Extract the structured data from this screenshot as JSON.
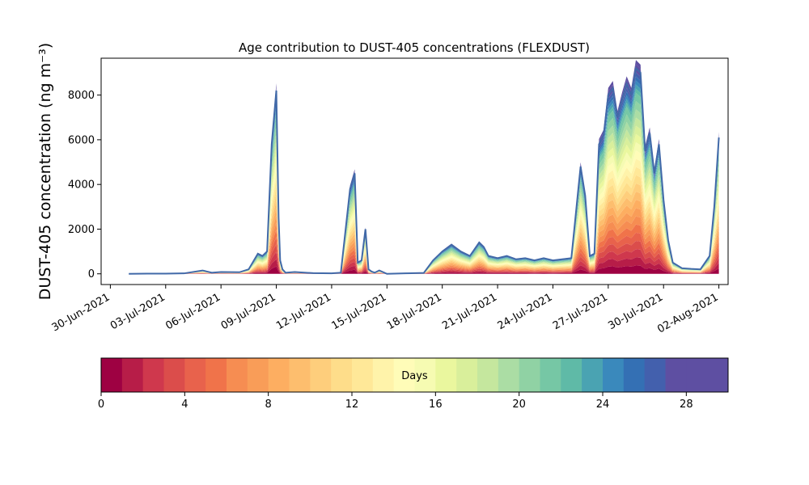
{
  "chart_data": [
    {
      "type": "area",
      "subtype": "stacked",
      "title": "Age contribution to DUST-405 concentrations (FLEXDUST)",
      "ylabel": "DUST-405 concentration (ng m⁻³)",
      "xlabel": "",
      "x_ticks": [
        "30-Jun-2021",
        "03-Jul-2021",
        "06-Jul-2021",
        "09-Jul-2021",
        "12-Jul-2021",
        "15-Jul-2021",
        "18-Jul-2021",
        "21-Jul-2021",
        "24-Jul-2021",
        "27-Jul-2021",
        "30-Jul-2021",
        "02-Aug-2021"
      ],
      "y_ticks": [
        "0",
        "2000",
        "4000",
        "6000",
        "8000"
      ],
      "xlim": [
        "2021-06-29T12:00",
        "2021-08-02T12:00"
      ],
      "ylim": [
        -480,
        9650
      ],
      "grid": false,
      "x": [
        "2021-07-01T00:00",
        "2021-07-02T00:00",
        "2021-07-03T00:00",
        "2021-07-04T00:00",
        "2021-07-05T00:00",
        "2021-07-05T12:00",
        "2021-07-06T00:00",
        "2021-07-07T00:00",
        "2021-07-07T12:00",
        "2021-07-08T00:00",
        "2021-07-08T06:00",
        "2021-07-08T12:00",
        "2021-07-08T18:00",
        "2021-07-09T00:00",
        "2021-07-09T03:00",
        "2021-07-09T05:00",
        "2021-07-09T08:00",
        "2021-07-09T12:00",
        "2021-07-10T00:00",
        "2021-07-11T00:00",
        "2021-07-12T00:00",
        "2021-07-12T12:00",
        "2021-07-13T00:00",
        "2021-07-13T06:00",
        "2021-07-13T10:00",
        "2021-07-13T15:00",
        "2021-07-13T20:00",
        "2021-07-14T00:00",
        "2021-07-14T04:00",
        "2021-07-14T08:00",
        "2021-07-14T14:00",
        "2021-07-15T00:00",
        "2021-07-16T00:00",
        "2021-07-17T00:00",
        "2021-07-17T12:00",
        "2021-07-18T00:00",
        "2021-07-18T12:00",
        "2021-07-19T00:00",
        "2021-07-19T12:00",
        "2021-07-20T00:00",
        "2021-07-20T06:00",
        "2021-07-20T12:00",
        "2021-07-21T00:00",
        "2021-07-21T12:00",
        "2021-07-22T00:00",
        "2021-07-22T12:00",
        "2021-07-23T00:00",
        "2021-07-23T12:00",
        "2021-07-24T00:00",
        "2021-07-24T12:00",
        "2021-07-25T00:00",
        "2021-07-25T12:00",
        "2021-07-25T18:00",
        "2021-07-26T00:00",
        "2021-07-26T06:00",
        "2021-07-26T12:00",
        "2021-07-26T18:00",
        "2021-07-27T00:00",
        "2021-07-27T06:00",
        "2021-07-27T12:00",
        "2021-07-27T18:00",
        "2021-07-28T00:00",
        "2021-07-28T06:00",
        "2021-07-28T12:00",
        "2021-07-28T18:00",
        "2021-07-29T00:00",
        "2021-07-29T06:00",
        "2021-07-29T12:00",
        "2021-07-29T18:00",
        "2021-07-30T00:00",
        "2021-07-30T06:00",
        "2021-07-30T12:00",
        "2021-07-31T00:00",
        "2021-07-31T12:00",
        "2021-08-01T00:00",
        "2021-08-01T12:00",
        "2021-08-01T18:00",
        "2021-08-02T00:00"
      ],
      "total": [
        0,
        10,
        10,
        20,
        150,
        50,
        80,
        70,
        200,
        900,
        800,
        1000,
        5800,
        8200,
        2500,
        600,
        200,
        50,
        80,
        30,
        20,
        50,
        3800,
        4500,
        500,
        600,
        2000,
        200,
        100,
        50,
        150,
        0,
        20,
        40,
        600,
        1000,
        1300,
        1000,
        800,
        1400,
        1200,
        800,
        700,
        800,
        650,
        700,
        600,
        700,
        600,
        650,
        700,
        4800,
        3500,
        800,
        900,
        5800,
        6200,
        8000,
        8300,
        7000,
        7800,
        8500,
        8000,
        9200,
        9000,
        5500,
        6300,
        4500,
        5800,
        3300,
        1500,
        500,
        250,
        220,
        200,
        800,
        3000,
        6100
      ],
      "series_fractions": [
        0.04,
        0.04,
        0.04,
        0.04,
        0.04,
        0.04,
        0.04,
        0.04,
        0.04,
        0.04,
        0.04,
        0.04,
        0.04,
        0.04,
        0.04,
        0.04,
        0.04,
        0.04,
        0.04,
        0.04,
        0.04,
        0.04,
        0.02,
        0.02,
        0.02,
        0.02,
        0.02,
        0.02,
        0.02,
        0.02
      ],
      "colorbar": {
        "label": "Days",
        "ticks": [
          "0",
          "4",
          "8",
          "12",
          "16",
          "20",
          "24",
          "28"
        ],
        "min": 0,
        "max": 30,
        "colors": [
          "#9e0142",
          "#b71d48",
          "#cf384d",
          "#db4d4b",
          "#e8624c",
          "#f0734a",
          "#f68d52",
          "#f99d58",
          "#fdae61",
          "#fdbe6e",
          "#fece7c",
          "#fedd8a",
          "#ffe898",
          "#fff3aa",
          "#fffcb8",
          "#f6fbb2",
          "#eaf79e",
          "#d9ef9b",
          "#c5e79e",
          "#abdda4",
          "#90d2a4",
          "#76c7a5",
          "#5fbaa7",
          "#4aa3b2",
          "#3a89bc",
          "#3470b4",
          "#4360ad",
          "#5e4fa2",
          "#5e4fa2",
          "#5e4fa2"
        ]
      },
      "line_color": "#4169a8"
    }
  ]
}
